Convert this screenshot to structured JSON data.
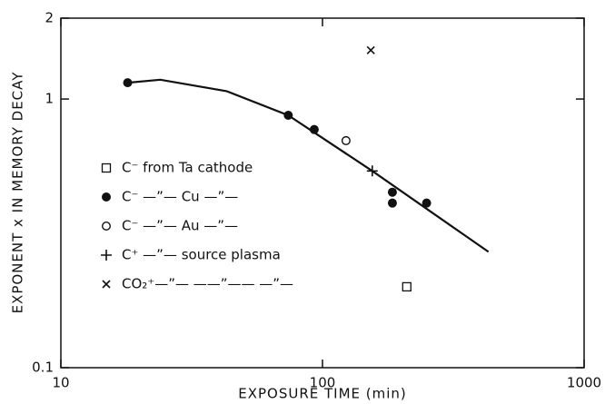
{
  "chart_data": {
    "type": "scatter",
    "xlabel": "EXPOSURE TIME (min)",
    "ylabel": "EXPONENT x IN MEMORY DECAY",
    "xscale": "log",
    "yscale": "log",
    "xlim": [
      10,
      1000
    ],
    "ylim": [
      0.1,
      2
    ],
    "xticks": [
      10,
      100,
      1000
    ],
    "yticks": [
      0.1,
      1,
      2
    ],
    "legend": "left",
    "color": "#111111",
    "series": [
      {
        "name": "C⁻ from Ta cathode",
        "marker": "square",
        "x": [
          210
        ],
        "values": [
          0.2
        ]
      },
      {
        "name": "C⁻ —”— Cu —”—",
        "marker": "filled-circle",
        "x": [
          18,
          74,
          93,
          185,
          185,
          250
        ],
        "values": [
          1.15,
          0.87,
          0.77,
          0.45,
          0.41,
          0.41
        ]
      },
      {
        "name": "C⁻ —”— Au —”—",
        "marker": "open-circle",
        "x": [
          123
        ],
        "values": [
          0.7
        ]
      },
      {
        "name": "C⁺ —”— source plasma",
        "marker": "plus",
        "x": [
          155
        ],
        "values": [
          0.54
        ]
      },
      {
        "name": "CO₂⁺—”— ——”—— —”—",
        "marker": "cross",
        "x": [
          153
        ],
        "values": [
          1.52
        ]
      }
    ],
    "fit": {
      "x": [
        18,
        24,
        43,
        74,
        155,
        431
      ],
      "values": [
        1.15,
        1.18,
        1.07,
        0.87,
        0.54,
        0.27
      ]
    }
  }
}
